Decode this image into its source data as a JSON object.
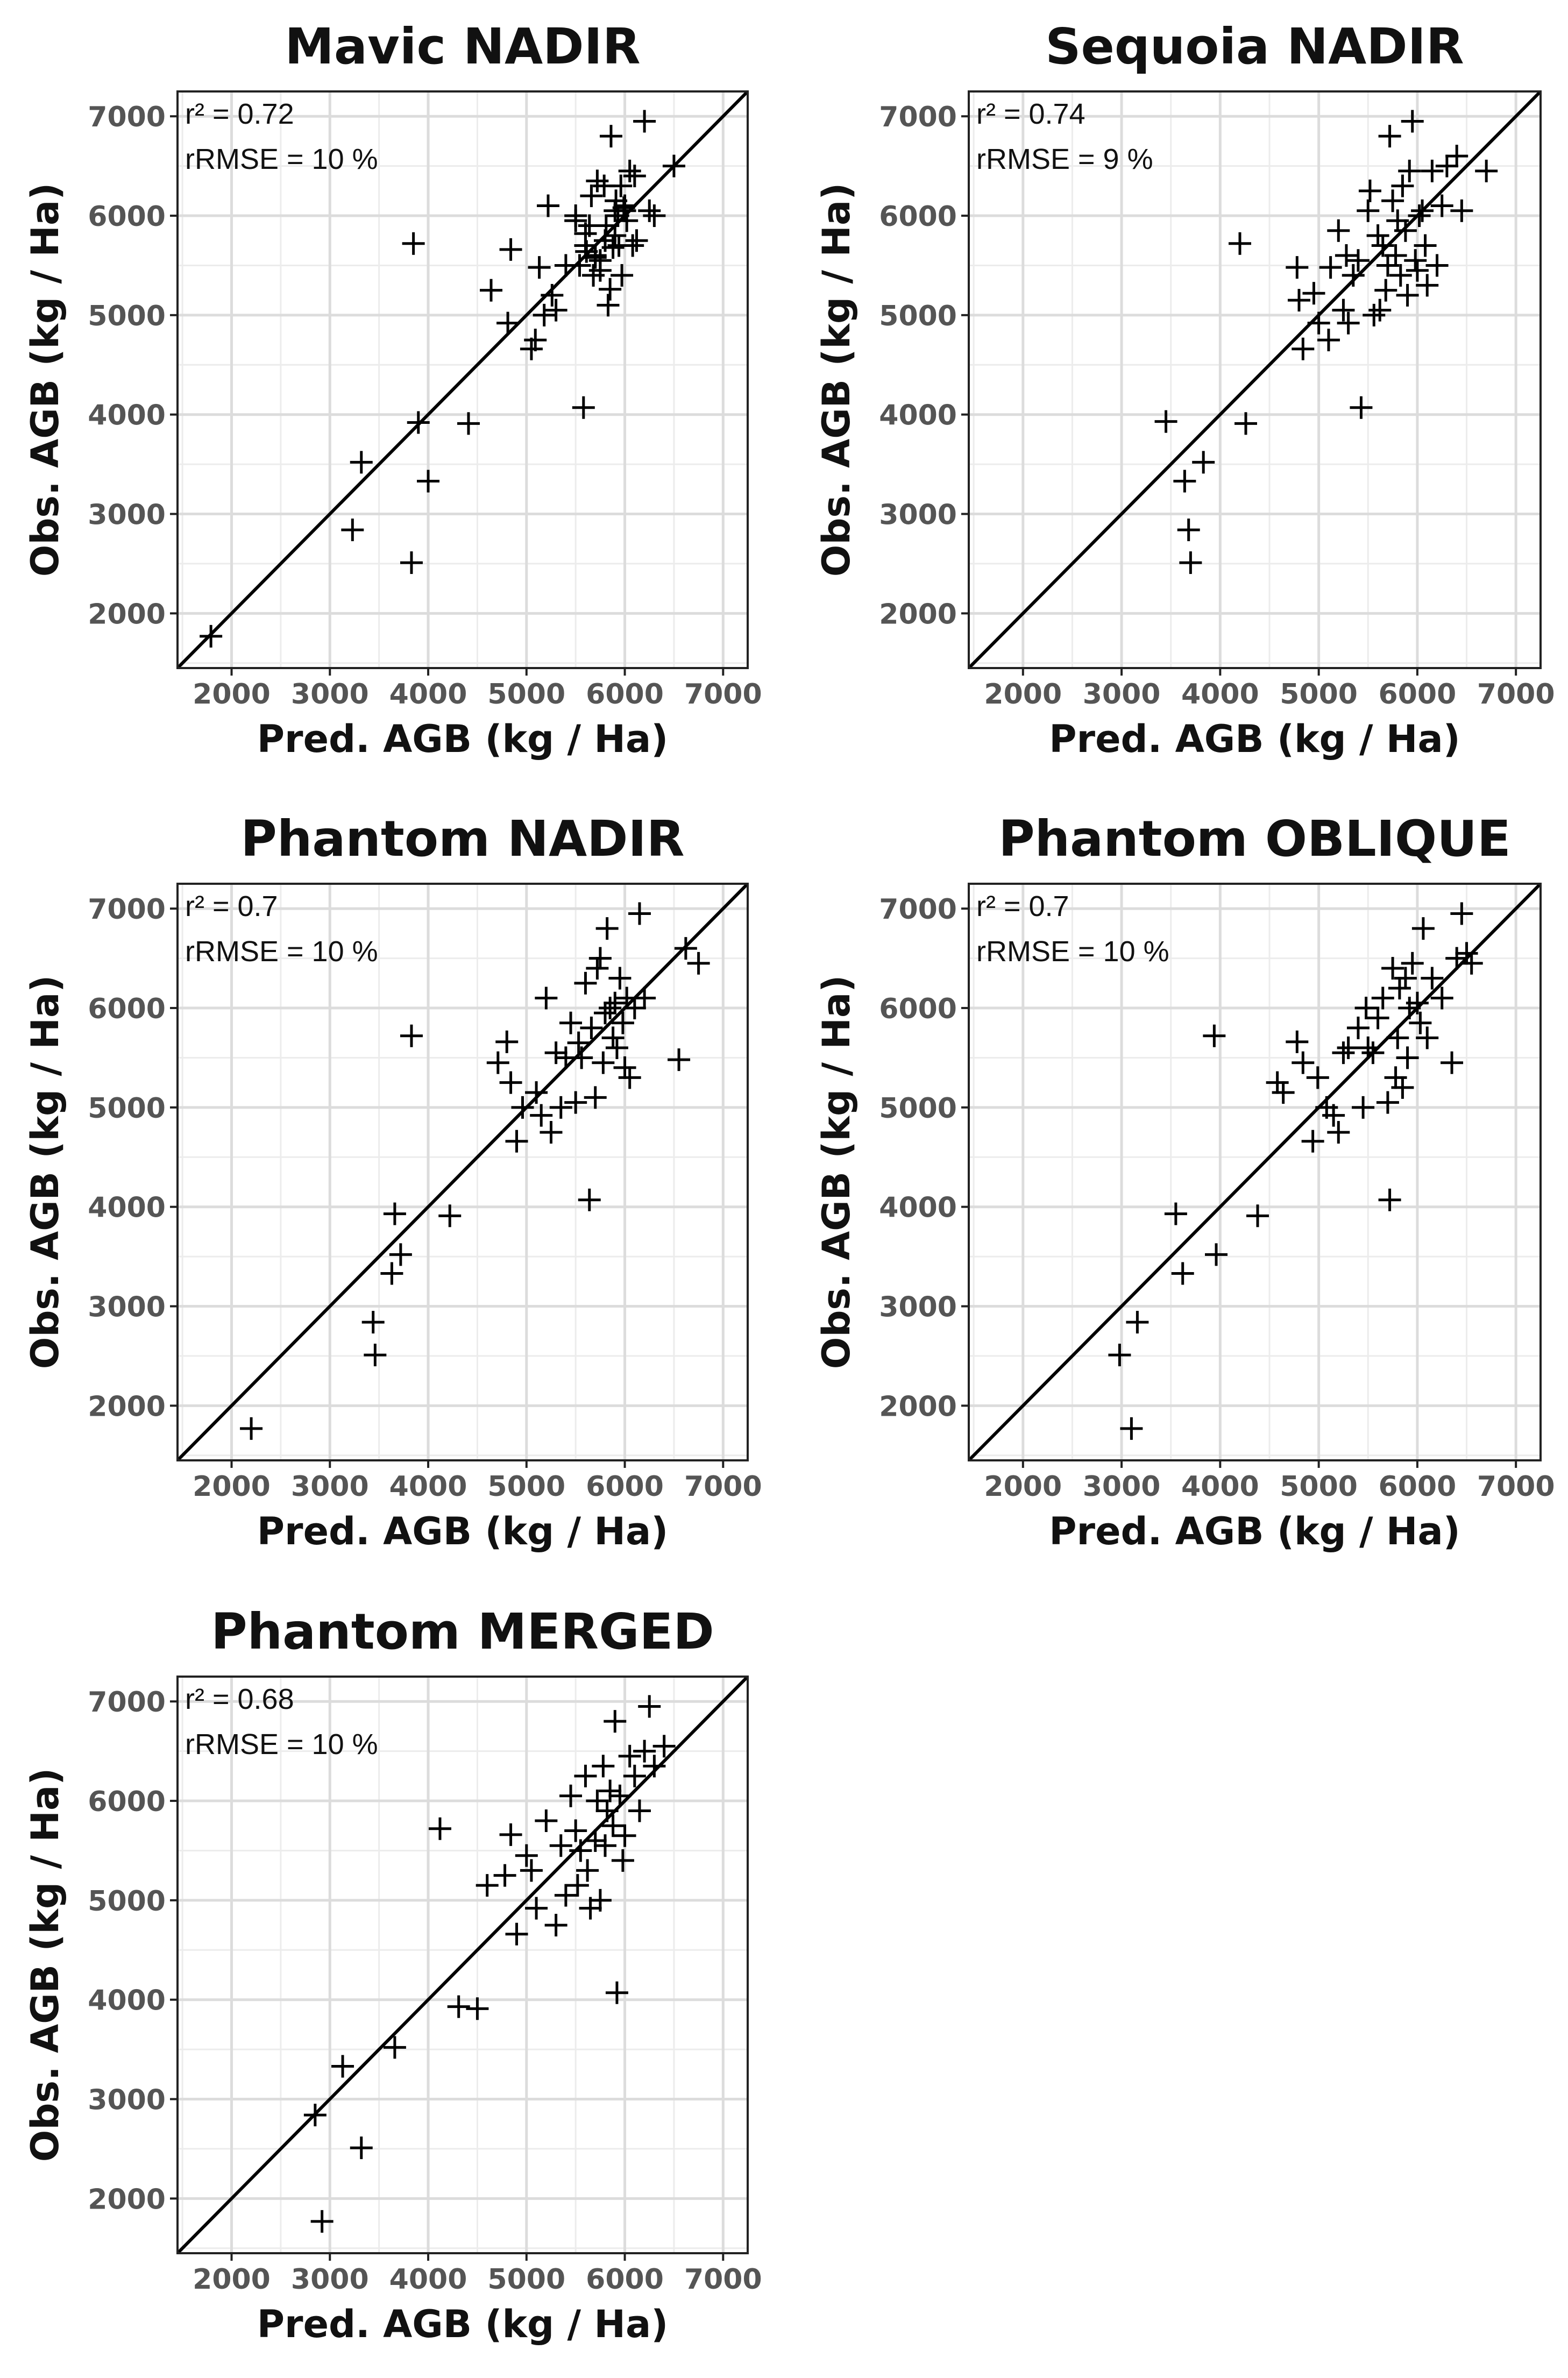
{
  "chart_data": [
    {
      "type": "scatter",
      "title": "Mavic NADIR",
      "xlabel": "Pred. AGB (kg / Ha)",
      "ylabel": "Obs. AGB (kg / Ha)",
      "xlim": [
        1450,
        7250
      ],
      "ylim": [
        1450,
        7250
      ],
      "xticks": [
        2000,
        3000,
        4000,
        5000,
        6000,
        7000
      ],
      "yticks": [
        2000,
        3000,
        4000,
        5000,
        6000,
        7000
      ],
      "r2_label": "r² = 0.72",
      "rrmse_label": "rRMSE = 10 %",
      "reference_line": "1:1",
      "marker": "+",
      "x": [
        1790,
        3230,
        3320,
        3830,
        3850,
        3900,
        4000,
        4410,
        4640,
        4810,
        4840,
        5050,
        5090,
        5130,
        5180,
        5220,
        5260,
        5300,
        5400,
        5500,
        5540,
        5580,
        5600,
        5610,
        5640,
        5660,
        5680,
        5700,
        5720,
        5750,
        5790,
        5810,
        5830,
        5850,
        5860,
        5880,
        5900,
        5910,
        5930,
        5940,
        5960,
        5970,
        5990,
        6000,
        6020,
        6050,
        6080,
        6100,
        6120,
        6200,
        6250,
        6300,
        6500,
        5500,
        5700,
        5800,
        5900,
        6000,
        5600,
        5750
      ],
      "y": [
        1770,
        2840,
        3520,
        2510,
        5720,
        3920,
        3330,
        3910,
        5250,
        4920,
        5660,
        4660,
        4750,
        5480,
        5000,
        6100,
        5200,
        5050,
        5500,
        6000,
        5500,
        4070,
        5820,
        5640,
        5900,
        6200,
        5400,
        5600,
        6350,
        5450,
        6300,
        5900,
        5100,
        5260,
        6800,
        5680,
        6050,
        6150,
        6000,
        5700,
        6300,
        5400,
        6080,
        6100,
        5950,
        6450,
        5700,
        6400,
        5750,
        6950,
        6050,
        6000,
        6500,
        5950,
        5580,
        5750,
        5800,
        6050,
        5700,
        5550
      ]
    },
    {
      "type": "scatter",
      "title": "Sequoia NADIR",
      "xlabel": "Pred. AGB (kg / Ha)",
      "ylabel": "Obs. AGB (kg / Ha)",
      "xlim": [
        1450,
        7250
      ],
      "ylim": [
        1450,
        7250
      ],
      "xticks": [
        2000,
        3000,
        4000,
        5000,
        6000,
        7000
      ],
      "yticks": [
        2000,
        3000,
        4000,
        5000,
        6000,
        7000
      ],
      "r2_label": "r² = 0.74",
      "rrmse_label": "rRMSE = 9 %",
      "reference_line": "1:1",
      "marker": "+",
      "x": [
        3450,
        3640,
        3680,
        3700,
        3830,
        4200,
        4260,
        4780,
        4800,
        4840,
        4950,
        5000,
        5100,
        5120,
        5200,
        5250,
        5280,
        5300,
        5350,
        5400,
        5430,
        5500,
        5520,
        5560,
        5600,
        5620,
        5650,
        5680,
        5700,
        5720,
        5750,
        5780,
        5800,
        5830,
        5850,
        5880,
        5900,
        5920,
        5950,
        5980,
        6000,
        6020,
        6050,
        6080,
        6100,
        6150,
        6200,
        6250,
        6300,
        6400,
        6450,
        6700
      ],
      "y": [
        3930,
        3330,
        2840,
        2510,
        3520,
        5720,
        3910,
        5480,
        5150,
        4660,
        5220,
        4920,
        4750,
        5480,
        5850,
        5050,
        5600,
        4920,
        5400,
        5550,
        4070,
        6050,
        6250,
        5000,
        5800,
        5050,
        5700,
        5250,
        5500,
        6800,
        6150,
        5600,
        5950,
        5400,
        6300,
        5850,
        5200,
        6450,
        6950,
        5550,
        5450,
        6000,
        6050,
        5700,
        5300,
        6450,
        5500,
        6100,
        6500,
        6600,
        6050,
        6450
      ]
    },
    {
      "type": "scatter",
      "title": "Phantom NADIR",
      "xlabel": "Pred. AGB (kg / Ha)",
      "ylabel": "Obs. AGB (kg / Ha)",
      "xlim": [
        1450,
        7250
      ],
      "ylim": [
        1450,
        7250
      ],
      "xticks": [
        2000,
        3000,
        4000,
        5000,
        6000,
        7000
      ],
      "yticks": [
        2000,
        3000,
        4000,
        5000,
        6000,
        7000
      ],
      "r2_label": "r² = 0.7",
      "rrmse_label": "rRMSE = 10 %",
      "reference_line": "1:1",
      "marker": "+",
      "x": [
        2200,
        3440,
        3460,
        3630,
        3660,
        3720,
        3830,
        4220,
        4710,
        4800,
        4840,
        4900,
        4960,
        5100,
        5150,
        5200,
        5250,
        5300,
        5350,
        5400,
        5450,
        5500,
        5530,
        5560,
        5600,
        5640,
        5660,
        5700,
        5720,
        5750,
        5780,
        5800,
        5820,
        5850,
        5880,
        5900,
        5920,
        5950,
        5980,
        6000,
        6020,
        6050,
        6100,
        6150,
        6200,
        6550,
        6620,
        6750
      ],
      "y": [
        1770,
        2840,
        2510,
        3330,
        3930,
        3520,
        5720,
        3910,
        5450,
        5660,
        5250,
        4660,
        5000,
        5150,
        4920,
        6100,
        4750,
        5550,
        5000,
        5500,
        5850,
        5050,
        5650,
        5500,
        6250,
        4070,
        5800,
        5100,
        6400,
        6500,
        5450,
        5950,
        6800,
        6000,
        5700,
        6050,
        5600,
        6300,
        5850,
        5400,
        6100,
        5300,
        6000,
        6950,
        6100,
        5480,
        6600,
        6450
      ]
    },
    {
      "type": "scatter",
      "title": "Phantom OBLIQUE",
      "xlabel": "Pred. AGB (kg / Ha)",
      "ylabel": "Obs. AGB (kg / Ha)",
      "xlim": [
        1450,
        7250
      ],
      "ylim": [
        1450,
        7250
      ],
      "xticks": [
        2000,
        3000,
        4000,
        5000,
        6000,
        7000
      ],
      "yticks": [
        2000,
        3000,
        4000,
        5000,
        6000,
        7000
      ],
      "r2_label": "r² = 0.7",
      "rrmse_label": "rRMSE = 10 %",
      "reference_line": "1:1",
      "marker": "+",
      "x": [
        2980,
        3100,
        3160,
        3550,
        3620,
        3940,
        3960,
        4380,
        4580,
        4640,
        4780,
        4840,
        4940,
        4990,
        5080,
        5150,
        5200,
        5250,
        5300,
        5400,
        5450,
        5480,
        5500,
        5550,
        5600,
        5650,
        5700,
        5720,
        5750,
        5780,
        5800,
        5820,
        5850,
        5880,
        5900,
        5920,
        5950,
        6000,
        6030,
        6060,
        6100,
        6150,
        6250,
        6350,
        6400,
        6450,
        6500,
        6550
      ],
      "y": [
        2510,
        1770,
        2840,
        3930,
        3330,
        5720,
        3520,
        3910,
        5250,
        5150,
        5660,
        5450,
        4660,
        5300,
        5000,
        4920,
        4750,
        5550,
        5600,
        5800,
        5000,
        6000,
        5600,
        5550,
        5900,
        6100,
        5050,
        4070,
        6400,
        5300,
        5700,
        6200,
        5200,
        6300,
        5500,
        6000,
        6450,
        6050,
        5850,
        6800,
        5700,
        6300,
        6100,
        5450,
        6500,
        6950,
        6550,
        6450
      ]
    },
    {
      "type": "scatter",
      "title": "Phantom MERGED",
      "xlabel": "Pred. AGB (kg / Ha)",
      "ylabel": "Obs. AGB (kg / Ha)",
      "xlim": [
        1450,
        7250
      ],
      "ylim": [
        1450,
        7250
      ],
      "xticks": [
        2000,
        3000,
        4000,
        5000,
        6000,
        7000
      ],
      "yticks": [
        2000,
        3000,
        4000,
        5000,
        6000,
        7000
      ],
      "r2_label": "r² = 0.68",
      "rrmse_label": "rRMSE = 10 %",
      "reference_line": "1:1",
      "marker": "+",
      "x": [
        2850,
        2920,
        3130,
        3320,
        3660,
        4120,
        4310,
        4500,
        4600,
        4780,
        4840,
        4900,
        5000,
        5050,
        5100,
        5200,
        5300,
        5350,
        5400,
        5450,
        5500,
        5520,
        5550,
        5600,
        5620,
        5650,
        5700,
        5720,
        5750,
        5780,
        5800,
        5820,
        5850,
        5880,
        5900,
        5920,
        5950,
        5980,
        6000,
        6050,
        6100,
        6150,
        6200,
        6250,
        6300,
        6400
      ],
      "y": [
        2840,
        1770,
        3330,
        2510,
        3520,
        5720,
        3930,
        3910,
        5150,
        5250,
        5660,
        4660,
        5450,
        5300,
        4920,
        5800,
        4750,
        5550,
        5050,
        6050,
        5700,
        5150,
        5500,
        6250,
        5300,
        4920,
        5600,
        6000,
        5000,
        6350,
        5550,
        5900,
        6100,
        5750,
        6800,
        4070,
        6050,
        5400,
        5650,
        6450,
        6250,
        5900,
        6500,
        6950,
        6350,
        6550
      ]
    }
  ]
}
